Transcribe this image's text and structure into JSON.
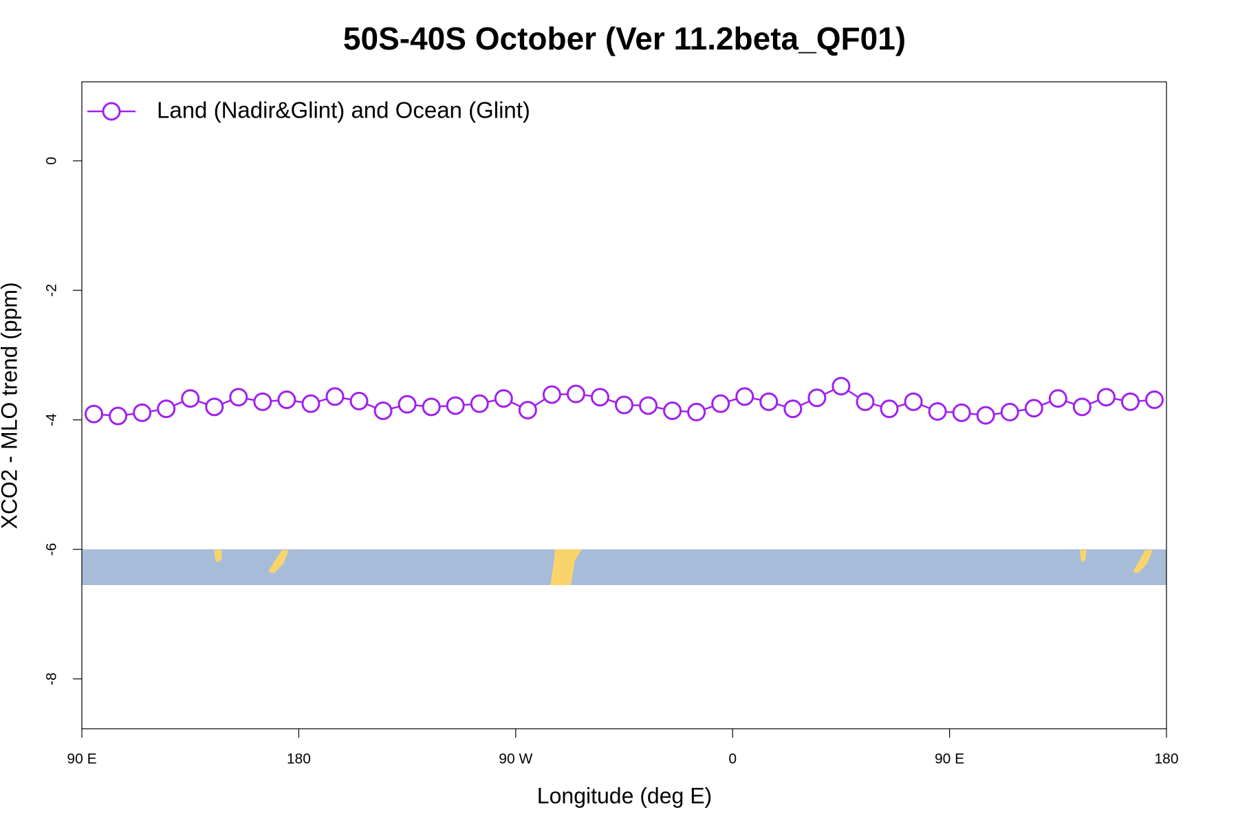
{
  "chart_data": {
    "type": "line",
    "title": "50S-40S October (Ver 11.2beta_QF01)",
    "x_label": "Longitude (deg E)",
    "y_label": "XCO2 - MLO trend (ppm)",
    "x": [
      95,
      105,
      115,
      125,
      135,
      145,
      155,
      165,
      175,
      185,
      195,
      205,
      215,
      225,
      235,
      245,
      255,
      265,
      275,
      285,
      295,
      305,
      315,
      325,
      335,
      345,
      355,
      365,
      375,
      385,
      395,
      405,
      415,
      425,
      435,
      445,
      455,
      465,
      475,
      485,
      495,
      505,
      515,
      525,
      535
    ],
    "series": [
      {
        "name": "Land (Nadir&Glint) and Ocean (Glint)",
        "color": "#a020f0",
        "values": [
          -3.91,
          -3.94,
          -3.89,
          -3.83,
          -3.67,
          -3.8,
          -3.65,
          -3.72,
          -3.69,
          -3.75,
          -3.64,
          -3.71,
          -3.86,
          -3.76,
          -3.8,
          -3.78,
          -3.75,
          -3.67,
          -3.85,
          -3.61,
          -3.6,
          -3.65,
          -3.77,
          -3.78,
          -3.86,
          -3.88,
          -3.75,
          -3.64,
          -3.72,
          -3.83,
          -3.66,
          -3.48,
          -3.72,
          -3.83,
          -3.72,
          -3.87,
          -3.89,
          -3.93,
          -3.88,
          -3.82,
          -3.67,
          -3.8,
          -3.65,
          -3.72,
          -3.69
        ]
      }
    ],
    "xlim": [
      90,
      540
    ],
    "xticks": [
      {
        "value": 90,
        "label": "90 E"
      },
      180,
      {
        "value": 270,
        "label": "90 W"
      },
      {
        "value": 360,
        "label": "0"
      },
      {
        "value": 450,
        "label": "90 E"
      },
      {
        "value": 540,
        "label": "180"
      }
    ],
    "ylim": [
      -8.77,
      1.22
    ],
    "yticks": [
      -8,
      -6,
      -4,
      -2,
      0
    ],
    "legend": "top-left"
  }
}
